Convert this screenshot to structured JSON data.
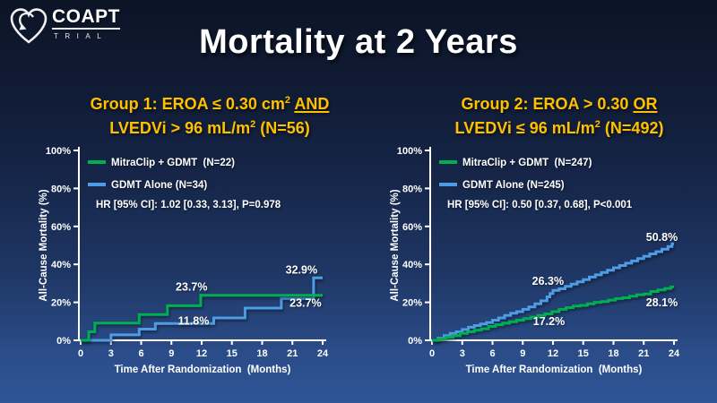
{
  "logo": {
    "name": "COAPT",
    "sub": "TRIAL"
  },
  "title": "Mortality at 2 Years",
  "groups": [
    {
      "line1_text": "Group 1: EROA ≤ 0.30 cm",
      "line1_sup": "2",
      "line1_conj": "AND",
      "line2_text": "LVEDVi > 96 mL/m",
      "line2_sup": "2",
      "line2_tail": " (N=56)"
    },
    {
      "line1_text": "Group 2: EROA > 0.30",
      "line1_sup": "",
      "line1_conj": "OR",
      "line2_text": "LVEDVi ≤ 96 mL/m",
      "line2_sup": "2",
      "line2_tail": " (N=492)"
    }
  ],
  "colors": {
    "mitraclip_green": "#00B050",
    "gdmt_blue": "#4E9CE4",
    "header_yellow": "#FFC000",
    "text_white": "#FFFFFF"
  },
  "chart_data": [
    {
      "type": "line",
      "subtype": "kaplan-meier-step",
      "xlabel": "Time After Randomization  (Months)",
      "ylabel": "All-Cause Mortality (%)",
      "xlim": [
        0,
        24
      ],
      "ylim": [
        0,
        100
      ],
      "x_ticks": [
        0,
        3,
        6,
        9,
        12,
        15,
        18,
        21,
        24
      ],
      "y_ticks": [
        0,
        20,
        40,
        60,
        80,
        100
      ],
      "grid": false,
      "legend_position": "top-left",
      "hr_text": "HR [95% CI]: 1.02 [0.33, 3.13], P=0.978",
      "series": [
        {
          "id": "mitraclip",
          "name": "MitraClip + GDMT  (N=22)",
          "color": "#00B050",
          "points": [
            [
              0,
              0
            ],
            [
              0.8,
              4.5
            ],
            [
              1.4,
              9.1
            ],
            [
              5.8,
              13.6
            ],
            [
              8.6,
              18.2
            ],
            [
              11.9,
              23.7
            ],
            [
              24,
              23.7
            ]
          ]
        },
        {
          "id": "gdmt-alone",
          "name": "GDMT Alone (N=34)",
          "color": "#4E9CE4",
          "points": [
            [
              0,
              0
            ],
            [
              3,
              2.9
            ],
            [
              5.8,
              5.9
            ],
            [
              7.4,
              8.8
            ],
            [
              13.2,
              11.8
            ],
            [
              16.3,
              17.0
            ],
            [
              19.9,
              22.0
            ],
            [
              23.1,
              32.9
            ],
            [
              24,
              32.9
            ]
          ]
        }
      ],
      "annotations": [
        {
          "text": "23.7%",
          "x": 11.0,
          "y": 28.0
        },
        {
          "text": "11.8%",
          "x": 11.2,
          "y": 10.2
        },
        {
          "text": "32.9%",
          "x": 21.9,
          "y": 37.0
        },
        {
          "text": "23.7%",
          "x": 22.3,
          "y": 19.5
        }
      ]
    },
    {
      "type": "line",
      "subtype": "kaplan-meier-step",
      "xlabel": "Time After Randomization  (Months)",
      "ylabel": "All-Cause Mortality (%)",
      "xlim": [
        0,
        24
      ],
      "ylim": [
        0,
        100
      ],
      "x_ticks": [
        0,
        3,
        6,
        9,
        12,
        15,
        18,
        21,
        24
      ],
      "y_ticks": [
        0,
        20,
        40,
        60,
        80,
        100
      ],
      "grid": false,
      "legend_position": "top-left",
      "hr_text": "HR [95% CI]: 0.50 [0.37, 0.68], P<0.001",
      "series": [
        {
          "id": "mitraclip",
          "name": "MitraClip + GDMT  (N=247)",
          "color": "#00B050",
          "points": [
            [
              0,
              0
            ],
            [
              0.7,
              0.8
            ],
            [
              1.4,
              1.6
            ],
            [
              2.1,
              2.4
            ],
            [
              2.8,
              3.7
            ],
            [
              3.5,
              4.5
            ],
            [
              4.2,
              5.3
            ],
            [
              4.9,
              6.1
            ],
            [
              5.6,
              7.3
            ],
            [
              6.3,
              8.2
            ],
            [
              7,
              9
            ],
            [
              7.7,
              9.8
            ],
            [
              8.4,
              10.6
            ],
            [
              9.1,
              11.4
            ],
            [
              9.8,
              12.2
            ],
            [
              10.5,
              13.1
            ],
            [
              11.2,
              13.9
            ],
            [
              11.9,
              15.1
            ],
            [
              12.6,
              16.3
            ],
            [
              13.3,
              17.2
            ],
            [
              14,
              18
            ],
            [
              14.7,
              18.4
            ],
            [
              15.4,
              19.2
            ],
            [
              16.1,
              20
            ],
            [
              16.8,
              20.4
            ],
            [
              17.5,
              21.2
            ],
            [
              18.2,
              22
            ],
            [
              18.9,
              22.4
            ],
            [
              19.6,
              23.2
            ],
            [
              20.3,
              24
            ],
            [
              21,
              24.4
            ],
            [
              21.7,
              25.7
            ],
            [
              22.4,
              26.5
            ],
            [
              23.1,
              27.3
            ],
            [
              23.7,
              28.1
            ],
            [
              24,
              28.1
            ]
          ]
        },
        {
          "id": "gdmt-alone",
          "name": "GDMT Alone (N=245)",
          "color": "#4E9CE4",
          "points": [
            [
              0,
              0
            ],
            [
              0.6,
              1.2
            ],
            [
              1.2,
              2.5
            ],
            [
              1.8,
              3.7
            ],
            [
              2.4,
              4.5
            ],
            [
              3,
              5.7
            ],
            [
              3.6,
              6.9
            ],
            [
              4.2,
              7.8
            ],
            [
              4.8,
              8.6
            ],
            [
              5.4,
              9.4
            ],
            [
              6,
              10.6
            ],
            [
              6.6,
              11.8
            ],
            [
              7.2,
              13.1
            ],
            [
              7.8,
              14.3
            ],
            [
              8.4,
              15.1
            ],
            [
              9,
              16.3
            ],
            [
              9.6,
              17.6
            ],
            [
              10.2,
              19.2
            ],
            [
              10.8,
              20.8
            ],
            [
              11.4,
              22.9
            ],
            [
              11.7,
              24.6
            ],
            [
              12,
              26.3
            ],
            [
              12.6,
              27.1
            ],
            [
              13.2,
              28.4
            ],
            [
              13.8,
              29.6
            ],
            [
              14.4,
              30.8
            ],
            [
              15,
              32
            ],
            [
              15.6,
              33.3
            ],
            [
              16.2,
              34.5
            ],
            [
              16.8,
              35.7
            ],
            [
              17.4,
              36.9
            ],
            [
              18,
              38.2
            ],
            [
              18.6,
              39.4
            ],
            [
              19.2,
              40.6
            ],
            [
              19.8,
              41.8
            ],
            [
              20.4,
              43
            ],
            [
              21,
              44.3
            ],
            [
              21.6,
              45.5
            ],
            [
              22.2,
              46.7
            ],
            [
              22.8,
              48
            ],
            [
              23.4,
              49.4
            ],
            [
              23.8,
              50.8
            ],
            [
              24,
              50.8
            ]
          ]
        }
      ],
      "annotations": [
        {
          "text": "26.3%",
          "x": 11.5,
          "y": 31.1
        },
        {
          "text": "17.2%",
          "x": 11.6,
          "y": 10.0
        },
        {
          "text": "50.8%",
          "x": 22.8,
          "y": 54.2
        },
        {
          "text": "28.1%",
          "x": 22.8,
          "y": 19.8
        }
      ]
    }
  ]
}
